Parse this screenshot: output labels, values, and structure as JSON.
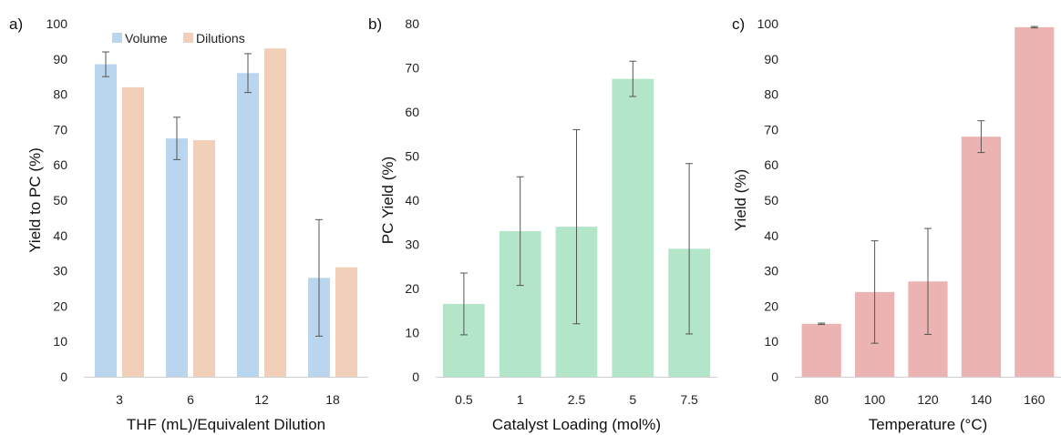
{
  "chart_data": [
    {
      "type": "bar",
      "panel_label": "a)",
      "categories": [
        "3",
        "6",
        "12",
        "18"
      ],
      "series": [
        {
          "name": "Volume",
          "color": "#b9d6ee",
          "values": [
            88.5,
            67.5,
            86,
            28
          ],
          "error": [
            3.5,
            6,
            5.5,
            16.5
          ]
        },
        {
          "name": "Dilutions",
          "color": "#f1cfb9",
          "values": [
            82,
            67,
            93,
            31
          ]
        }
      ],
      "xlabel": "THF (mL)/Equivalent Dilution",
      "ylabel": "Yield to PC (%)",
      "ylim": [
        0,
        100
      ],
      "yticks": [
        "0",
        "10",
        "20",
        "30",
        "40",
        "50",
        "60",
        "70",
        "80",
        "90",
        "100"
      ],
      "grid": false,
      "legend": "top"
    },
    {
      "type": "bar",
      "panel_label": "b)",
      "categories": [
        "0.5",
        "1",
        "2.5",
        "5",
        "7.5"
      ],
      "series": [
        {
          "color": "#b3e6c9",
          "values": [
            16.5,
            33,
            34,
            67.5,
            29
          ],
          "error": [
            7,
            12.3,
            22,
            4,
            19.3
          ]
        }
      ],
      "xlabel": "Catalyst Loading (mol%)",
      "ylabel": "PC Yield (%)",
      "ylim": [
        0,
        80
      ],
      "yticks": [
        "0",
        "10",
        "20",
        "30",
        "40",
        "50",
        "60",
        "70",
        "80"
      ],
      "grid": false
    },
    {
      "type": "bar",
      "panel_label": "c)",
      "categories": [
        "80",
        "100",
        "120",
        "140",
        "160"
      ],
      "series": [
        {
          "color": "#ecb3b3",
          "values": [
            15,
            24,
            27,
            68,
            99
          ],
          "error": [
            0.2,
            14.5,
            15,
            4.5,
            0.2
          ]
        }
      ],
      "xlabel": "Temperature (°C)",
      "ylabel": "Yield (%)",
      "ylim": [
        0,
        100
      ],
      "yticks": [
        "0",
        "10",
        "20",
        "30",
        "40",
        "50",
        "60",
        "70",
        "80",
        "90",
        "100"
      ],
      "grid": false
    }
  ]
}
